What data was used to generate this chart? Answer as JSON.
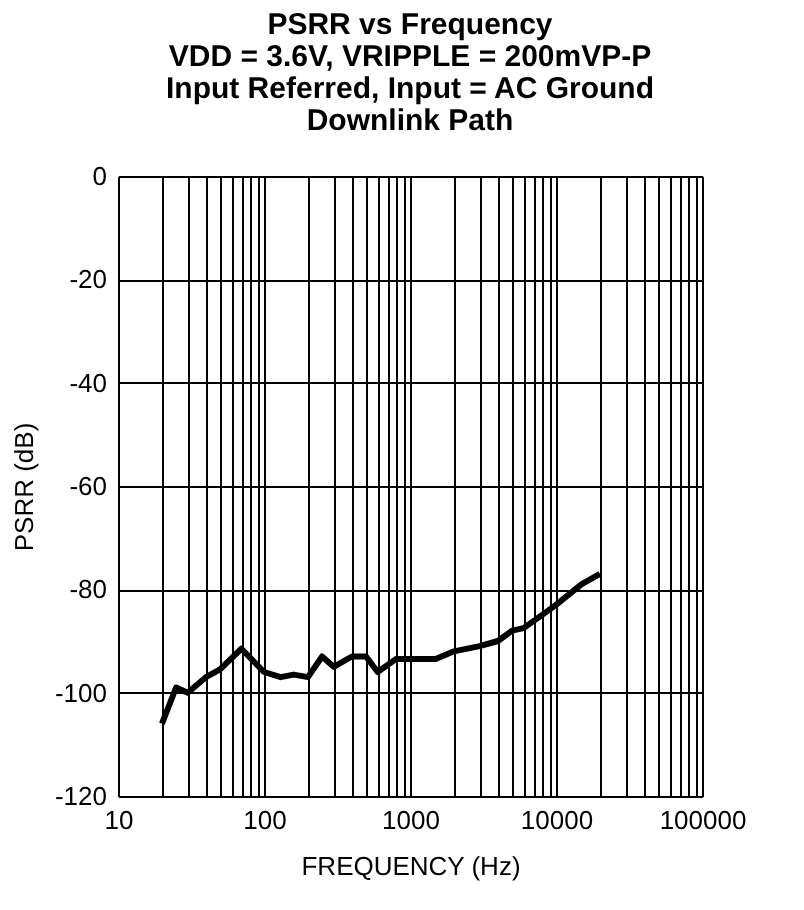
{
  "chart_data": {
    "type": "line",
    "title": [
      "PSRR vs Frequency",
      "VDD = 3.6V, VRIPPLE = 200mVP-P",
      "Input Referred, Input = AC Ground",
      "Downlink Path"
    ],
    "xlabel": "FREQUENCY (Hz)",
    "ylabel": "PSRR (dB)",
    "log": "x",
    "grid": true,
    "marker": "none",
    "line_style": "solid",
    "x": [
      20,
      25,
      30,
      40,
      50,
      70,
      100,
      130,
      160,
      200,
      250,
      300,
      400,
      500,
      600,
      800,
      1000,
      1500,
      2000,
      3000,
      4000,
      5000,
      6000,
      8000,
      10000,
      15000,
      20000
    ],
    "series": [
      {
        "color": "#000000",
        "values": [
          -106,
          -99,
          -100,
          -97,
          -95.5,
          -91.5,
          -96,
          -97,
          -96.5,
          -97,
          -93,
          -95,
          -93,
          -93,
          -96,
          -93.5,
          -93.5,
          -93.5,
          -92,
          -91,
          -90,
          -88,
          -87.5,
          -85,
          -83,
          -79,
          -77
        ]
      }
    ],
    "xlim": [
      10,
      100000
    ],
    "ylim": [
      -120,
      0
    ],
    "xticks": [
      10,
      {
        "value": 20,
        "label": null
      },
      {
        "value": 30,
        "label": null
      },
      {
        "value": 40,
        "label": null
      },
      {
        "value": 50,
        "label": null
      },
      {
        "value": 60,
        "label": null
      },
      {
        "value": 70,
        "label": null
      },
      {
        "value": 80,
        "label": null
      },
      {
        "value": 90,
        "label": null
      },
      100,
      {
        "value": 200,
        "label": null
      },
      {
        "value": 300,
        "label": null
      },
      {
        "value": 400,
        "label": null
      },
      {
        "value": 500,
        "label": null
      },
      {
        "value": 600,
        "label": null
      },
      {
        "value": 700,
        "label": null
      },
      {
        "value": 800,
        "label": null
      },
      {
        "value": 900,
        "label": null
      },
      1000,
      {
        "value": 2000,
        "label": null
      },
      {
        "value": 3000,
        "label": null
      },
      {
        "value": 4000,
        "label": null
      },
      {
        "value": 5000,
        "label": null
      },
      {
        "value": 6000,
        "label": null
      },
      {
        "value": 7000,
        "label": null
      },
      {
        "value": 8000,
        "label": null
      },
      {
        "value": 9000,
        "label": null
      },
      10000,
      {
        "value": 20000,
        "label": null
      },
      {
        "value": 30000,
        "label": null
      },
      {
        "value": 40000,
        "label": null
      },
      {
        "value": 50000,
        "label": null
      },
      {
        "value": 60000,
        "label": null
      },
      {
        "value": 70000,
        "label": null
      },
      {
        "value": 80000,
        "label": null
      },
      {
        "value": 90000,
        "label": null
      },
      100000
    ],
    "yticks": [
      -120,
      -100,
      -80,
      -60,
      -40,
      -20,
      0
    ]
  }
}
